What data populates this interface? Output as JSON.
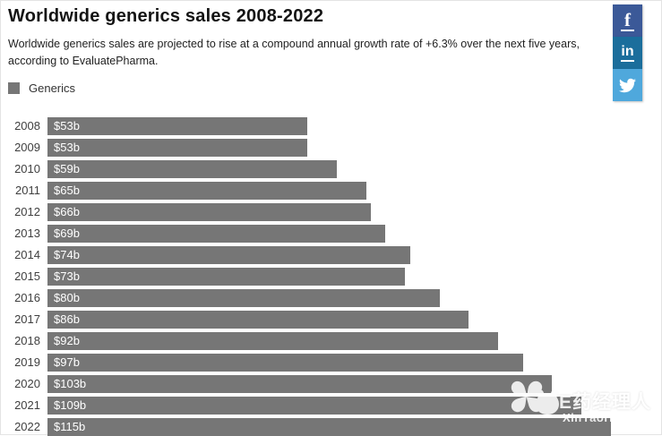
{
  "header": {
    "title": "Worldwide generics sales 2008-2022",
    "subtitle": "Worldwide generics sales are projected to rise at a compound annual growth rate of +6.3% over the next five years, according to EvaluatePharma."
  },
  "legend": {
    "label": "Generics",
    "color": "#767676"
  },
  "chart_data": {
    "type": "bar",
    "orientation": "horizontal",
    "title": "Worldwide generics sales 2008-2022",
    "series_name": "Generics",
    "categories": [
      "2008",
      "2009",
      "2010",
      "2011",
      "2012",
      "2013",
      "2014",
      "2015",
      "2016",
      "2017",
      "2018",
      "2019",
      "2020",
      "2021",
      "2022"
    ],
    "values": [
      53,
      53,
      59,
      65,
      66,
      69,
      74,
      73,
      80,
      86,
      92,
      97,
      103,
      109,
      115
    ],
    "value_labels": [
      "$53b",
      "$53b",
      "$59b",
      "$65b",
      "$66b",
      "$69b",
      "$74b",
      "$73b",
      "$80b",
      "$86b",
      "$92b",
      "$97b",
      "$103b",
      "$109b",
      "$115b"
    ],
    "unit": "$ billions",
    "xlim": [
      0,
      115
    ],
    "bar_color": "#767676",
    "grid": false,
    "legend_position": "top-left"
  },
  "social": {
    "facebook_label": "f",
    "linkedin_label": "in",
    "colors": {
      "facebook": "#3b5998",
      "linkedin": "#1b6e9c",
      "twitter": "#4fa8dc"
    }
  },
  "watermark": {
    "brand_text": "E药经理人",
    "site_text": "XinYaoHui.com"
  }
}
